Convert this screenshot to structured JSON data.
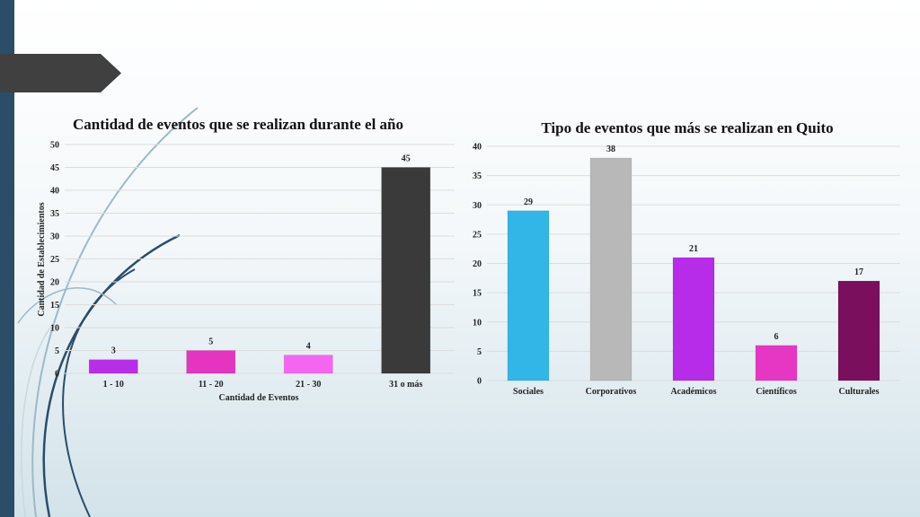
{
  "colors": {
    "sidebar": "#2b4d68",
    "tab": "#404040",
    "decor_line_dark": "#2b4d68",
    "decor_line_light": "#9fb8c8"
  },
  "chart_data": [
    {
      "type": "bar",
      "title": "Cantidad de eventos que se realizan durante el año",
      "xlabel": "Cantidad de Eventos",
      "ylabel": "Cantidad de Establecimientos",
      "ylim": [
        0,
        50
      ],
      "yticks": [
        0,
        5,
        10,
        15,
        20,
        25,
        30,
        35,
        40,
        45,
        50
      ],
      "grid": true,
      "categories": [
        "1 - 10",
        "11 - 20",
        "21 - 30",
        "31 o más"
      ],
      "values": [
        3,
        5,
        4,
        45
      ],
      "colors": [
        "#b82ee8",
        "#e535c0",
        "#f566f0",
        "#3a3a3a"
      ]
    },
    {
      "type": "bar",
      "title": "Tipo de eventos que más se realizan en Quito",
      "xlabel": "",
      "ylabel": "",
      "ylim": [
        0,
        40
      ],
      "yticks": [
        0,
        5,
        10,
        15,
        20,
        25,
        30,
        35,
        40
      ],
      "grid": true,
      "categories": [
        "Sociales",
        "Corporativos",
        "Académicos",
        "Científicos",
        "Culturales"
      ],
      "values": [
        29,
        38,
        21,
        6,
        17
      ],
      "colors": [
        "#31b6e7",
        "#b8b8b8",
        "#b72ce8",
        "#e637c4",
        "#7a0f5e"
      ]
    }
  ]
}
